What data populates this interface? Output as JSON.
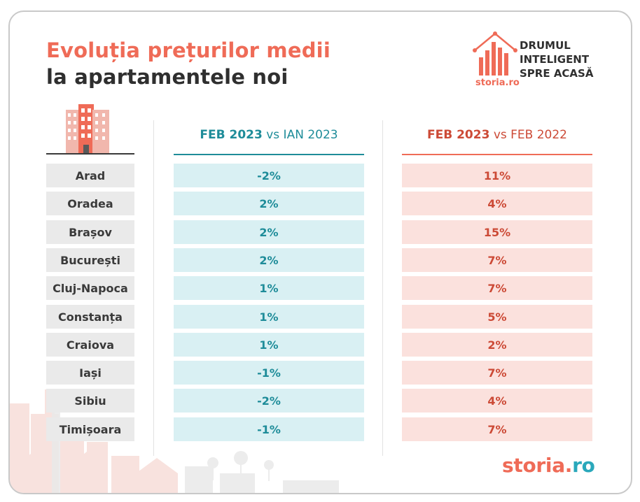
{
  "title": {
    "line1": "Evoluția prețurilor medii",
    "line2": "la apartamentele noi"
  },
  "header_logo": {
    "slogan": [
      "DRUMUL",
      "INTELIGENT",
      "SPRE ACASĂ"
    ],
    "wordmark_main": "storia",
    "wordmark_ro": ".ro"
  },
  "footer_logo": {
    "main": "storia",
    "dot": ".",
    "ro": "ro"
  },
  "colors": {
    "accent_red": "#ef6b57",
    "teal": "#1e8c99",
    "teal_bg": "#d9f0f3",
    "red_text": "#cc4a36",
    "red_bg": "#fbe1dd"
  },
  "chart_data": {
    "type": "table",
    "columns": [
      {
        "bold": "FEB 2023",
        "rest": " vs IAN 2023"
      },
      {
        "bold": "FEB 2023",
        "rest": " vs FEB 2022"
      }
    ],
    "rows": [
      {
        "city": "Arad",
        "mom": "-2%",
        "yoy": "11%"
      },
      {
        "city": "Oradea",
        "mom": "2%",
        "yoy": "4%"
      },
      {
        "city": "Brașov",
        "mom": "2%",
        "yoy": "15%"
      },
      {
        "city": "București",
        "mom": "2%",
        "yoy": "7%"
      },
      {
        "city": "Cluj-Napoca",
        "mom": "1%",
        "yoy": "7%"
      },
      {
        "city": "Constanța",
        "mom": "1%",
        "yoy": "5%"
      },
      {
        "city": "Craiova",
        "mom": "1%",
        "yoy": "2%"
      },
      {
        "city": "Iași",
        "mom": "-1%",
        "yoy": "7%"
      },
      {
        "city": "Sibiu",
        "mom": "-2%",
        "yoy": "4%"
      },
      {
        "city": "Timișoara",
        "mom": "-1%",
        "yoy": "7%"
      }
    ]
  }
}
